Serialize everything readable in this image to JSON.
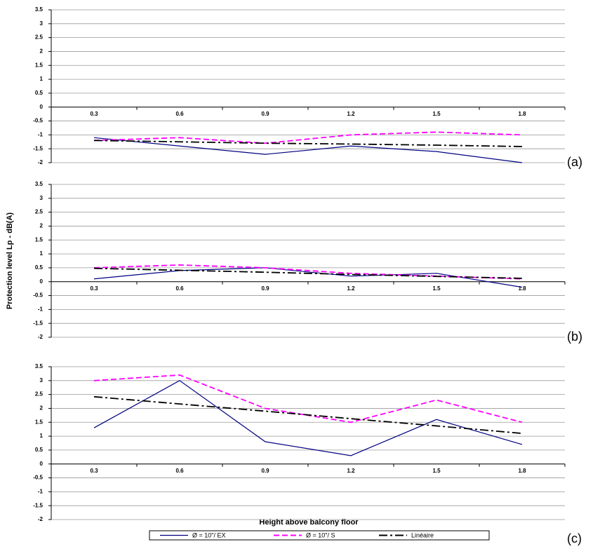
{
  "chart_data": [
    {
      "type": "line",
      "panel_label": "(a)",
      "categories": [
        "0.3",
        "0.6",
        "0.9",
        "1.2",
        "1.5",
        "1.8"
      ],
      "ylim": [
        -2,
        3.5
      ],
      "yticks": [
        -2,
        -1.5,
        -1,
        -0.5,
        0,
        0.5,
        1,
        1.5,
        2,
        2.5,
        3,
        3.5
      ],
      "grid": true,
      "series": [
        {
          "name": "Ø = 10\"/ EX",
          "color": "#000080",
          "dash": "solid",
          "values": [
            -1.1,
            -1.4,
            -1.7,
            -1.4,
            -1.6,
            -2.0
          ]
        },
        {
          "name": "Ø = 10\"/ S",
          "color": "#ff00ff",
          "dash": "dashed",
          "values": [
            -1.2,
            -1.1,
            -1.3,
            -1.0,
            -0.9,
            -1.0
          ]
        },
        {
          "name": "Linéaire",
          "color": "#000000",
          "dash": "dashdot",
          "values": [
            -1.2,
            -1.25,
            -1.3,
            -1.33,
            -1.37,
            -1.42
          ]
        }
      ]
    },
    {
      "type": "line",
      "panel_label": "(b)",
      "y_label": "Protection level Lp - dB(A)",
      "categories": [
        "0.3",
        "0.6",
        "0.9",
        "1.2",
        "1.5",
        "1.8"
      ],
      "ylim": [
        -2,
        3.5
      ],
      "yticks": [
        -2,
        -1.5,
        -1,
        -0.5,
        0,
        0.5,
        1,
        1.5,
        2,
        2.5,
        3,
        3.5
      ],
      "grid": true,
      "series": [
        {
          "name": "Ø = 10\"/ EX",
          "color": "#000080",
          "dash": "solid",
          "values": [
            0.1,
            0.4,
            0.5,
            0.2,
            0.3,
            -0.2
          ]
        },
        {
          "name": "Ø = 10\"/ S",
          "color": "#ff00ff",
          "dash": "dashed",
          "values": [
            0.5,
            0.6,
            0.5,
            0.3,
            0.2,
            0.1
          ]
        },
        {
          "name": "Linéaire",
          "color": "#000000",
          "dash": "dashdot",
          "values": [
            0.48,
            0.41,
            0.34,
            0.26,
            0.19,
            0.12
          ]
        }
      ]
    },
    {
      "type": "line",
      "panel_label": "(c)",
      "x_label": "Height above balcony floor",
      "categories": [
        "0.3",
        "0.6",
        "0.9",
        "1.2",
        "1.5",
        "1.8"
      ],
      "ylim": [
        -2,
        3.5
      ],
      "yticks": [
        -2,
        -1.5,
        -1,
        -0.5,
        0,
        0.5,
        1,
        1.5,
        2,
        2.5,
        3,
        3.5
      ],
      "grid": true,
      "series": [
        {
          "name": "Ø = 10\"/ EX",
          "color": "#000080",
          "dash": "solid",
          "values": [
            1.3,
            3.0,
            0.8,
            0.3,
            1.6,
            0.7
          ]
        },
        {
          "name": "Ø = 10\"/ S",
          "color": "#ff00ff",
          "dash": "dashed",
          "values": [
            3.0,
            3.2,
            2.0,
            1.5,
            2.3,
            1.5
          ]
        },
        {
          "name": "Linéaire",
          "color": "#000000",
          "dash": "dashdot",
          "values": [
            2.42,
            2.16,
            1.9,
            1.63,
            1.37,
            1.1
          ]
        }
      ]
    }
  ]
}
